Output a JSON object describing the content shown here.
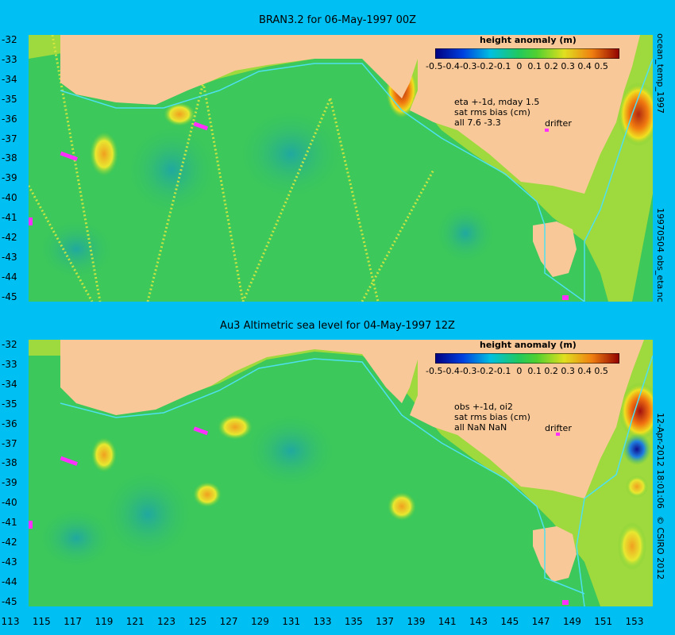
{
  "panel1": {
    "title": "BRAN3.2 for 06-May-1997 00Z",
    "colorbar_title": "height anomaly (m)",
    "colorbar_ticks": [
      "-0.5",
      "-0.4",
      "-0.3",
      "-0.2",
      "-0.1",
      "0",
      "0.1",
      "0.2",
      "0.3",
      "0.4",
      "0.5"
    ],
    "note_lines": [
      "eta +-1d, mday 1.5",
      "sat rms bias (cm)",
      "all 7.6 -3.3"
    ],
    "drifter_label": "drifter",
    "side_text": "ocean_temp_1997",
    "side_text2": "19970504 obs_eta.nc"
  },
  "panel2": {
    "title": "Au3 Altimetric sea level  for 04-May-1997 12Z",
    "colorbar_title": "height anomaly (m)",
    "colorbar_ticks": [
      "-0.5",
      "-0.4",
      "-0.3",
      "-0.2",
      "-0.1",
      "0",
      "0.1",
      "0.2",
      "0.3",
      "0.4",
      "0.5"
    ],
    "note_lines": [
      "obs +-1d, oi2",
      "sat rms bias (cm)",
      "all NaN NaN"
    ],
    "drifter_label": "drifter",
    "side_text": "12-Apr-2012 18:01:06",
    "side_text2": "© CSIRO 2012"
  },
  "axes": {
    "lat_labels": [
      "-32",
      "-33",
      "-34",
      "-35",
      "-36",
      "-37",
      "-38",
      "-39",
      "-40",
      "-41",
      "-42",
      "-43",
      "-44",
      "-45"
    ],
    "lon_labels": [
      "113",
      "115",
      "117",
      "119",
      "121",
      "123",
      "125",
      "127",
      "129",
      "131",
      "133",
      "135",
      "137",
      "139",
      "141",
      "143",
      "145",
      "147",
      "149",
      "151",
      "153"
    ]
  },
  "colors": {
    "background": "#00bff3",
    "land": "#f9c898",
    "ocean_base": "#3cc85a",
    "coast_current": "#4fe0f0"
  }
}
